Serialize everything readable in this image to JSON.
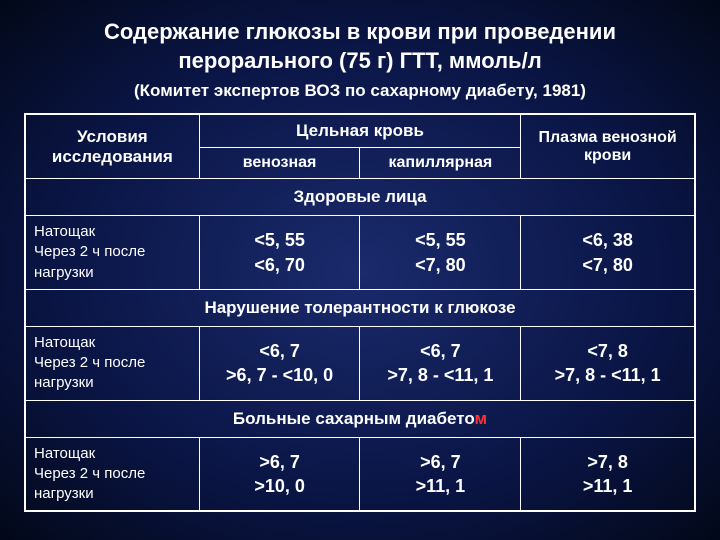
{
  "title": "Содержание глюкозы в крови при проведении перорального (75 г) ГТТ, ммоль/л",
  "subtitle": "(Комитет экспертов ВОЗ по сахарному диабету, 1981)",
  "headers": {
    "conditions": "Условия исследования",
    "whole_blood": "Цельная кровь",
    "plasma": "Плазма венозной крови",
    "venous": "венозная",
    "capillary": "капиллярная"
  },
  "sections": [
    {
      "title": "Здоровые лица",
      "red_m": false
    },
    {
      "title": "Нарушение толерантности к глюкозе",
      "red_m": false
    },
    {
      "title": "Больные сахарным диабето",
      "red_m": true,
      "m": "м"
    }
  ],
  "cond": {
    "fasting": "Натощак",
    "after2h": "Через 2 ч после нагрузки"
  },
  "rows": [
    {
      "venous_fast": "<5, 55",
      "venous_2h": "<6, 70",
      "cap_fast": "<5, 55",
      "cap_2h": "<7, 80",
      "plasma_fast": "<6, 38",
      "plasma_2h": "<7, 80"
    },
    {
      "venous_fast": "<6, 7",
      "venous_2h": ">6, 7 - <10, 0",
      "cap_fast": "<6, 7",
      "cap_2h": ">7, 8 - <11, 1",
      "plasma_fast": "<7, 8",
      "plasma_2h": ">7, 8 - <11, 1"
    },
    {
      "venous_fast": ">6, 7",
      "venous_2h": ">10, 0",
      "cap_fast": ">6, 7",
      "cap_2h": ">11, 1",
      "plasma_fast": ">7, 8",
      "plasma_2h": ">11, 1"
    }
  ]
}
